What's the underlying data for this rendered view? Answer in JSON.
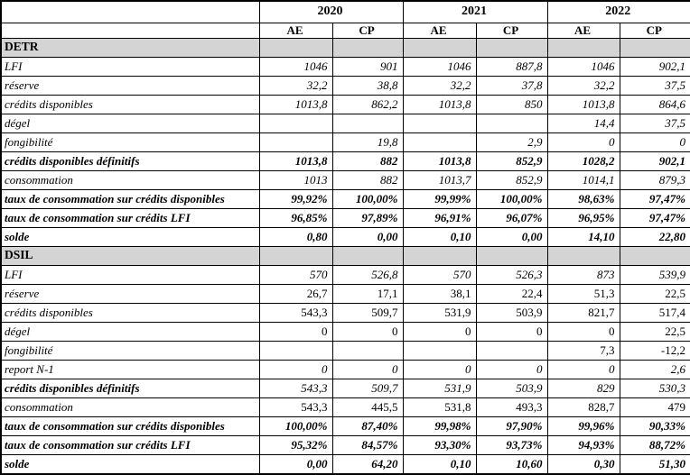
{
  "header": {
    "years": [
      "2020",
      "2021",
      "2022"
    ],
    "columns": [
      "AE",
      "CP"
    ]
  },
  "sections": [
    {
      "name": "DETR",
      "rows": [
        {
          "label": "LFI",
          "label_style": "italic",
          "value_style": "italic",
          "values": [
            "1046",
            "901",
            "1046",
            "887,8",
            "1046",
            "902,1"
          ]
        },
        {
          "label": "réserve",
          "label_style": "italic",
          "value_style": "italic",
          "values": [
            "32,2",
            "38,8",
            "32,2",
            "37,8",
            "32,2",
            "37,5"
          ]
        },
        {
          "label": "crédits disponibles",
          "label_style": "italic",
          "value_style": "italic",
          "values": [
            "1013,8",
            "862,2",
            "1013,8",
            "850",
            "1013,8",
            "864,6"
          ]
        },
        {
          "label": "dégel",
          "label_style": "italic",
          "value_style": "italic",
          "values": [
            "",
            "",
            "",
            "",
            "14,4",
            "37,5"
          ]
        },
        {
          "label": "fongibilité",
          "label_style": "italic",
          "value_style": "italic",
          "values": [
            "",
            "19,8",
            "",
            "2,9",
            "0",
            "0"
          ]
        },
        {
          "label": "crédits disponibles définitifs",
          "label_style": "bold-italic",
          "value_style": "bold-italic",
          "values": [
            "1013,8",
            "882",
            "1013,8",
            "852,9",
            "1028,2",
            "902,1"
          ]
        },
        {
          "label": "consommation",
          "label_style": "italic",
          "value_style": "italic",
          "values": [
            "1013",
            "882",
            "1013,7",
            "852,9",
            "1014,1",
            "879,3"
          ]
        },
        {
          "label": "taux de consommation sur crédits disponibles",
          "label_style": "bold-italic",
          "value_style": "bold-italic",
          "values": [
            "99,92%",
            "100,00%",
            "99,99%",
            "100,00%",
            "98,63%",
            "97,47%"
          ]
        },
        {
          "label": "taux de consommation sur crédits LFI",
          "label_style": "bold-italic",
          "value_style": "bold-italic",
          "values": [
            "96,85%",
            "97,89%",
            "96,91%",
            "96,07%",
            "96,95%",
            "97,47%"
          ]
        },
        {
          "label": "solde",
          "label_style": "bold-italic",
          "value_style": "bold-italic",
          "values": [
            "0,80",
            "0,00",
            "0,10",
            "0,00",
            "14,10",
            "22,80"
          ]
        }
      ]
    },
    {
      "name": "DSIL",
      "rows": [
        {
          "label": "LFI",
          "label_style": "italic",
          "value_style": "italic",
          "values": [
            "570",
            "526,8",
            "570",
            "526,3",
            "873",
            "539,9"
          ]
        },
        {
          "label": "réserve",
          "label_style": "italic",
          "value_style": "upright",
          "values": [
            "26,7",
            "17,1",
            "38,1",
            "22,4",
            "51,3",
            "22,5"
          ]
        },
        {
          "label": "crédits disponibles",
          "label_style": "italic",
          "value_style": "upright",
          "values": [
            "543,3",
            "509,7",
            "531,9",
            "503,9",
            "821,7",
            "517,4"
          ]
        },
        {
          "label": "dégel",
          "label_style": "italic",
          "value_style": "upright",
          "values": [
            "0",
            "0",
            "0",
            "0",
            "0",
            "22,5"
          ]
        },
        {
          "label": "fongibilité",
          "label_style": "italic",
          "value_style": "upright",
          "values": [
            "",
            "",
            "",
            "",
            "7,3",
            "-12,2"
          ]
        },
        {
          "label": "report N-1",
          "label_style": "italic",
          "value_style": "italic",
          "values": [
            "0",
            "0",
            "0",
            "0",
            "0",
            "2,6"
          ]
        },
        {
          "label": "crédits disponibles définitifs",
          "label_style": "bold-italic",
          "value_style": "italic",
          "values": [
            "543,3",
            "509,7",
            "531,9",
            "503,9",
            "829",
            "530,3"
          ]
        },
        {
          "label": "consommation",
          "label_style": "italic",
          "value_style": "upright",
          "values": [
            "543,3",
            "445,5",
            "531,8",
            "493,3",
            "828,7",
            "479"
          ]
        },
        {
          "label": "taux de consommation sur crédits disponibles",
          "label_style": "bold-italic",
          "value_style": "bold-italic",
          "values": [
            "100,00%",
            "87,40%",
            "99,98%",
            "97,90%",
            "99,96%",
            "90,33%"
          ]
        },
        {
          "label": "taux de consommation sur crédits LFI",
          "label_style": "bold-italic",
          "value_style": "bold-italic",
          "values": [
            "95,32%",
            "84,57%",
            "93,30%",
            "93,73%",
            "94,93%",
            "88,72%"
          ]
        },
        {
          "label": "solde",
          "label_style": "bold-italic",
          "value_style": "bold-italic",
          "values": [
            "0,00",
            "64,20",
            "0,10",
            "10,60",
            "0,30",
            "51,30"
          ]
        }
      ]
    }
  ],
  "colors": {
    "section_row_bg": "#D4D4D4",
    "border": "#000000",
    "text": "#000000",
    "background": "#FFFFFF"
  }
}
